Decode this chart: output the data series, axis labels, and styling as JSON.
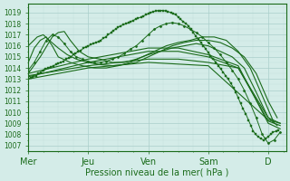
{
  "bg_color": "#d4ece8",
  "grid_major_color": "#aacfca",
  "grid_minor_color": "#c2deda",
  "line_color": "#1a6b1a",
  "ylim": [
    1006.5,
    1019.8
  ],
  "yticks": [
    1007,
    1008,
    1009,
    1010,
    1011,
    1012,
    1013,
    1014,
    1015,
    1016,
    1017,
    1018,
    1019
  ],
  "xlabel": "Pression niveau de la mer( hPa )",
  "xtick_labels": [
    "Mer",
    "Jeu",
    "Ven",
    "Sam",
    "D"
  ],
  "xtick_positions": [
    0,
    1,
    2,
    3,
    4
  ],
  "xlim": [
    0,
    4.3
  ],
  "series": [
    {
      "x": [
        0.0,
        0.04,
        0.08,
        0.13,
        0.17,
        0.21,
        0.25,
        0.29,
        0.33,
        0.38,
        0.42,
        0.46,
        0.5,
        0.54,
        0.58,
        0.63,
        0.67,
        0.71,
        0.75,
        0.79,
        0.83,
        0.88,
        0.92,
        0.96,
        1.0,
        1.04,
        1.08,
        1.13,
        1.17,
        1.21,
        1.25,
        1.29,
        1.33,
        1.38,
        1.42,
        1.46,
        1.5,
        1.54,
        1.58,
        1.63,
        1.67,
        1.71,
        1.75,
        1.79,
        1.83,
        1.88,
        1.92,
        1.96,
        2.0,
        2.04,
        2.08,
        2.13,
        2.17,
        2.21,
        2.25,
        2.29,
        2.33,
        2.38,
        2.42,
        2.46,
        2.5,
        2.54,
        2.58,
        2.63,
        2.67,
        2.71,
        2.75,
        2.79,
        2.83,
        2.88,
        2.92,
        2.96,
        3.0,
        3.04,
        3.08,
        3.13,
        3.17,
        3.21,
        3.25,
        3.29,
        3.33,
        3.38,
        3.42,
        3.46,
        3.5,
        3.54,
        3.58,
        3.63,
        3.67,
        3.71,
        3.75,
        3.79,
        3.83,
        3.88,
        3.92,
        3.96,
        4.0,
        4.04,
        4.08,
        4.13,
        4.17
      ],
      "y": [
        1013.0,
        1013.1,
        1013.2,
        1013.3,
        1013.5,
        1013.6,
        1013.8,
        1013.9,
        1014.0,
        1014.1,
        1014.2,
        1014.3,
        1014.4,
        1014.5,
        1014.6,
        1014.8,
        1014.9,
        1015.0,
        1015.2,
        1015.3,
        1015.5,
        1015.6,
        1015.8,
        1015.9,
        1016.0,
        1016.1,
        1016.2,
        1016.3,
        1016.4,
        1016.5,
        1016.7,
        1016.8,
        1017.0,
        1017.2,
        1017.4,
        1017.5,
        1017.7,
        1017.8,
        1017.9,
        1018.0,
        1018.1,
        1018.2,
        1018.3,
        1018.4,
        1018.5,
        1018.6,
        1018.7,
        1018.8,
        1018.9,
        1019.0,
        1019.1,
        1019.15,
        1019.2,
        1019.2,
        1019.2,
        1019.15,
        1019.1,
        1019.0,
        1018.9,
        1018.8,
        1018.6,
        1018.4,
        1018.2,
        1018.0,
        1017.8,
        1017.5,
        1017.2,
        1016.9,
        1016.6,
        1016.3,
        1016.0,
        1015.7,
        1015.4,
        1015.1,
        1014.8,
        1014.5,
        1014.2,
        1013.9,
        1013.6,
        1013.3,
        1013.0,
        1012.6,
        1012.2,
        1011.8,
        1011.3,
        1010.8,
        1010.3,
        1009.8,
        1009.3,
        1008.8,
        1008.3,
        1008.0,
        1007.8,
        1007.6,
        1007.5,
        1007.6,
        1007.8,
        1008.0,
        1008.2,
        1008.3,
        1008.4
      ],
      "marker": "s",
      "ms": 1.5,
      "lw": 0.7
    },
    {
      "x": [
        0.0,
        1.0,
        2.0,
        2.5,
        3.0,
        3.5,
        4.0,
        4.2
      ],
      "y": [
        1013.2,
        1014.5,
        1015.5,
        1015.5,
        1015.0,
        1014.0,
        1009.5,
        1009.0
      ],
      "marker": null,
      "ms": 1,
      "lw": 0.8
    },
    {
      "x": [
        0.0,
        1.0,
        2.0,
        2.5,
        3.0,
        3.5,
        4.0,
        4.2
      ],
      "y": [
        1013.5,
        1014.8,
        1015.8,
        1015.8,
        1015.2,
        1014.2,
        1009.0,
        1008.5
      ],
      "marker": null,
      "ms": 1,
      "lw": 0.8
    },
    {
      "x": [
        0.0,
        1.0,
        2.0,
        2.5,
        3.0,
        3.5,
        4.0,
        4.2
      ],
      "y": [
        1013.3,
        1014.2,
        1014.8,
        1014.8,
        1014.5,
        1014.0,
        1009.2,
        1008.8
      ],
      "marker": null,
      "ms": 1,
      "lw": 0.8
    },
    {
      "x": [
        0.0,
        1.0,
        2.0,
        3.0,
        4.0,
        4.2
      ],
      "y": [
        1013.0,
        1014.0,
        1014.5,
        1014.2,
        1009.3,
        1009.0
      ],
      "marker": null,
      "ms": 1,
      "lw": 0.8
    },
    {
      "x": [
        0.0,
        0.2,
        0.4,
        0.5,
        0.6,
        0.7,
        0.85,
        1.0,
        1.2,
        1.4,
        1.6,
        1.8,
        2.0,
        2.2,
        2.4,
        2.6,
        2.8,
        3.0,
        3.2,
        3.4,
        3.6,
        3.8,
        4.0,
        4.15
      ],
      "y": [
        1013.5,
        1015.0,
        1016.8,
        1017.2,
        1017.3,
        1016.5,
        1015.5,
        1015.0,
        1014.8,
        1014.5,
        1014.5,
        1014.8,
        1015.2,
        1015.5,
        1015.8,
        1016.0,
        1016.2,
        1016.0,
        1015.5,
        1015.0,
        1014.0,
        1011.8,
        1009.5,
        1008.8
      ],
      "marker": null,
      "ms": 1,
      "lw": 0.8
    },
    {
      "x": [
        0.0,
        0.1,
        0.2,
        0.3,
        0.4,
        0.5,
        0.6,
        0.7,
        0.8,
        0.9,
        1.0,
        1.1,
        1.2,
        1.3,
        1.4,
        1.5,
        1.6,
        1.7,
        1.8,
        1.9,
        2.0,
        2.1,
        2.2,
        2.3,
        2.4,
        2.5,
        2.6,
        2.7,
        2.8,
        2.9,
        3.0,
        3.1,
        3.2,
        3.3,
        3.4,
        3.5,
        3.6,
        3.7,
        3.8,
        3.9,
        4.0,
        4.1,
        4.2
      ],
      "y": [
        1013.8,
        1014.5,
        1015.5,
        1016.5,
        1017.0,
        1016.8,
        1016.2,
        1015.5,
        1015.0,
        1014.8,
        1014.6,
        1014.5,
        1014.5,
        1014.6,
        1014.8,
        1015.0,
        1015.3,
        1015.7,
        1016.0,
        1016.5,
        1017.0,
        1017.5,
        1017.8,
        1018.0,
        1018.1,
        1018.0,
        1017.8,
        1017.5,
        1017.2,
        1016.8,
        1016.3,
        1015.8,
        1015.2,
        1014.5,
        1013.8,
        1013.0,
        1012.0,
        1010.8,
        1009.5,
        1008.0,
        1007.2,
        1007.5,
        1008.2
      ],
      "marker": "D",
      "ms": 1.5,
      "lw": 0.7
    },
    {
      "x": [
        0.0,
        0.15,
        0.25,
        0.35,
        0.5,
        0.65,
        0.8,
        1.0,
        1.2,
        1.4,
        1.6,
        1.8,
        2.0,
        2.2,
        2.4,
        2.6,
        2.8,
        3.0,
        3.2,
        3.4,
        3.6,
        3.8,
        4.0,
        4.15
      ],
      "y": [
        1016.0,
        1016.8,
        1017.0,
        1016.5,
        1015.8,
        1015.2,
        1014.8,
        1014.5,
        1014.3,
        1014.2,
        1014.3,
        1014.5,
        1015.0,
        1015.5,
        1016.0,
        1016.3,
        1016.5,
        1016.5,
        1016.3,
        1015.8,
        1015.0,
        1013.5,
        1011.0,
        1009.5
      ],
      "marker": null,
      "ms": 1,
      "lw": 0.8
    },
    {
      "x": [
        0.0,
        0.1,
        0.2,
        0.3,
        0.4,
        0.5,
        0.7,
        0.9,
        1.1,
        1.3,
        1.5,
        1.7,
        1.9,
        2.1,
        2.3,
        2.5,
        2.7,
        2.9,
        3.1,
        3.3,
        3.5,
        3.7,
        3.9,
        4.1
      ],
      "y": [
        1014.5,
        1015.8,
        1016.5,
        1016.8,
        1016.0,
        1015.0,
        1014.5,
        1014.2,
        1014.0,
        1014.0,
        1014.2,
        1014.5,
        1015.0,
        1015.5,
        1016.0,
        1016.3,
        1016.5,
        1016.8,
        1016.8,
        1016.5,
        1015.5,
        1014.0,
        1011.5,
        1009.0
      ],
      "marker": null,
      "ms": 1,
      "lw": 0.8
    }
  ]
}
